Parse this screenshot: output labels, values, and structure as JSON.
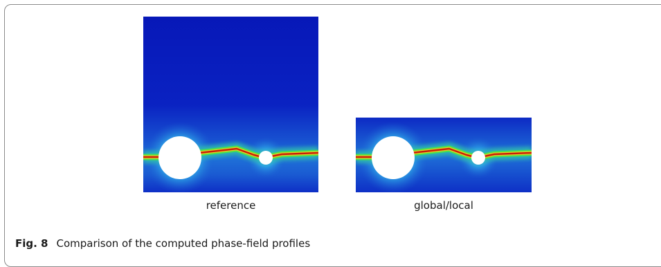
{
  "panels": [
    {
      "label": "reference"
    },
    {
      "label": "global/local"
    }
  ],
  "caption": {
    "label": "Fig. 8",
    "text": "Comparison of the computed phase-field profiles"
  },
  "colors": {
    "background_field": "#0a1fbf",
    "crack_core": "#c81e0a",
    "crack_halo": "#36d66a",
    "hole": "#ffffff"
  }
}
